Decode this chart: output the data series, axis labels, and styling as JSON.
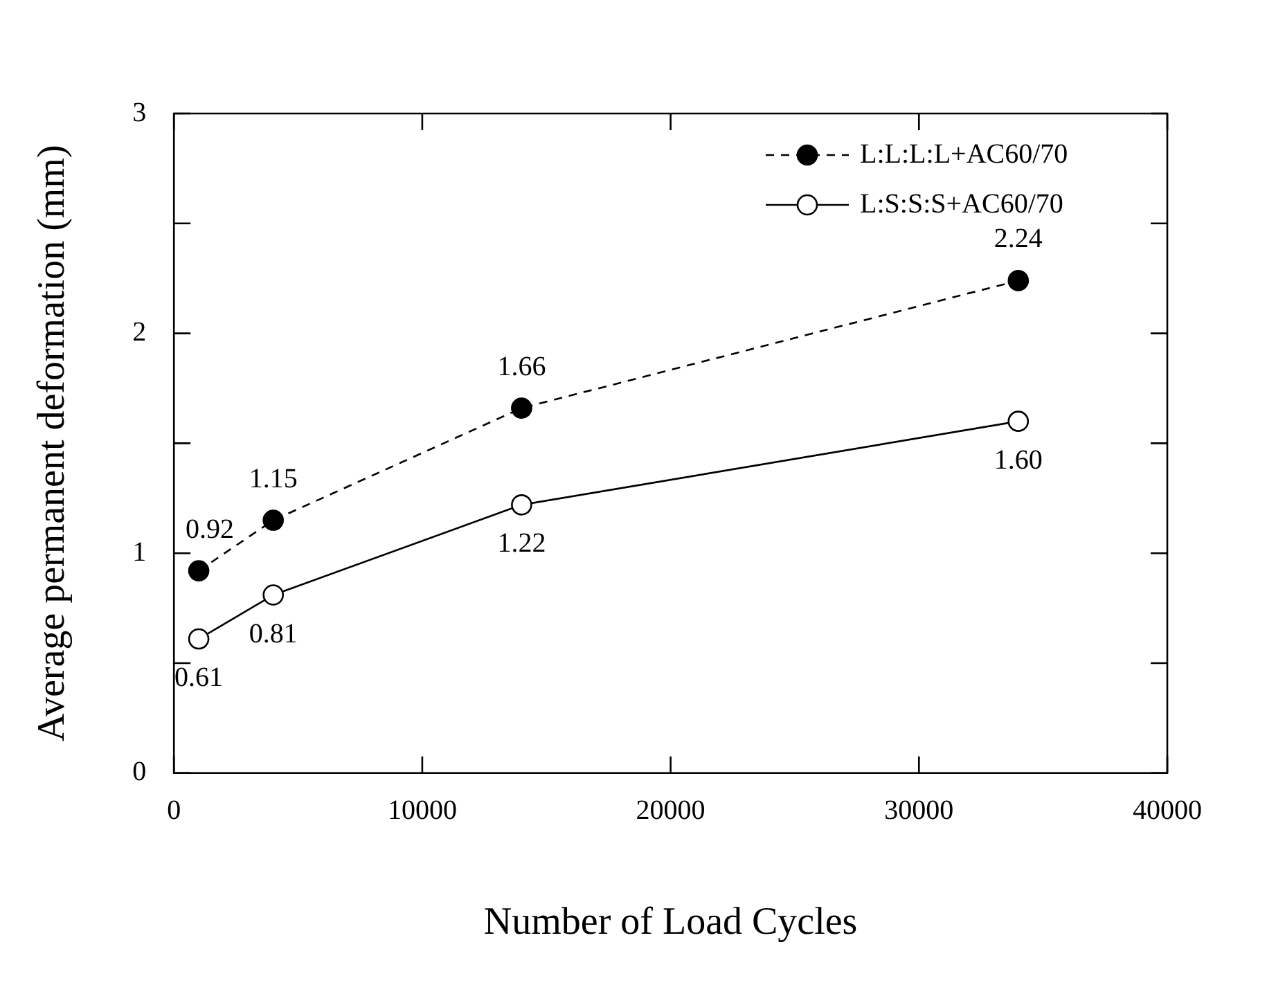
{
  "chart_data": {
    "type": "line",
    "xlabel": "Number of Load Cycles",
    "ylabel": "Average permanent deformation (mm)",
    "x": [
      1000,
      4000,
      14000,
      34000
    ],
    "series": [
      {
        "name": "L:L:L:L+AC60/70",
        "color": "#000000",
        "line_style": "dashed",
        "values": [
          0.92,
          1.15,
          1.66,
          2.24
        ],
        "value_labels": [
          "0.92",
          "1.15",
          "1.66",
          "2.24"
        ]
      },
      {
        "name": "L:S:S:S+AC60/70",
        "color": "#000000",
        "line_style": "solid",
        "values": [
          0.61,
          0.81,
          1.22,
          1.6
        ],
        "value_labels": [
          "0.61",
          "0.81",
          "1.22",
          "1.60"
        ]
      }
    ],
    "xlim": [
      0,
      40000
    ],
    "xticks": [
      0,
      10000,
      20000,
      30000,
      40000
    ],
    "ylim": [
      0,
      3
    ],
    "yticks": [
      0,
      {
        "value": 0.5,
        "label": null
      },
      1,
      {
        "value": 1.5,
        "label": null
      },
      2,
      {
        "value": 2.5,
        "label": null
      },
      3
    ],
    "grid": false,
    "legend": "top right",
    "marker": "circle"
  }
}
